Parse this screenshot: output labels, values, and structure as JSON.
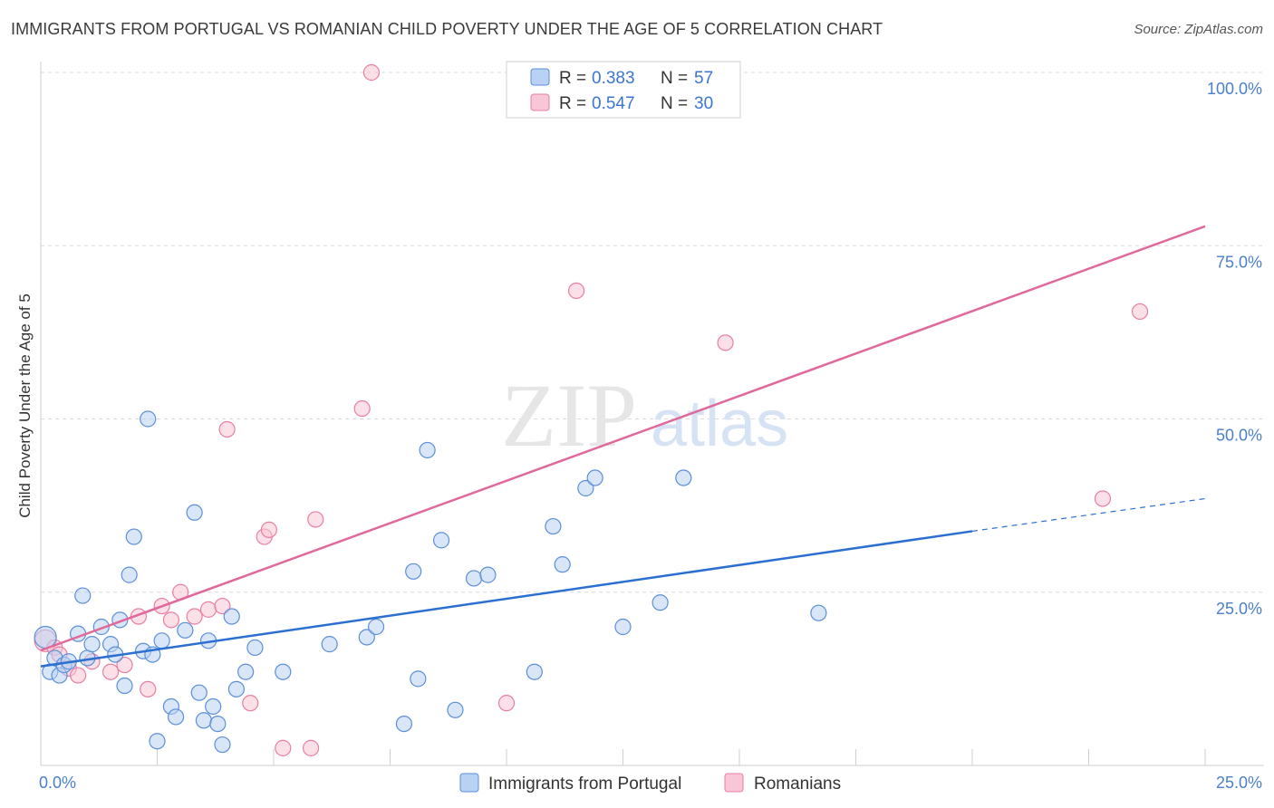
{
  "title": "IMMIGRANTS FROM PORTUGAL VS ROMANIAN CHILD POVERTY UNDER THE AGE OF 5 CORRELATION CHART",
  "source": "Source: ZipAtlas.com",
  "watermark": {
    "zip": "ZIP",
    "atlas": "atlas"
  },
  "colors": {
    "blue": "#5b8fd9",
    "blue_fill": "#b9d1f3",
    "blue_line": "#2b6fd0",
    "pink": "#e87fa3",
    "pink_fill": "#f8c6d6",
    "pink_line": "#e0689a",
    "axis_text": "#4a7fcc",
    "grid": "#d8d8d8"
  },
  "legend": {
    "rows": [
      {
        "r_label": "R =",
        "r_value": "0.383",
        "n_label": "N =",
        "n_value": "57",
        "series": "blue"
      },
      {
        "r_label": "R =",
        "r_value": "0.547",
        "n_label": "N =",
        "n_value": "30",
        "series": "pink"
      }
    ]
  },
  "chart_data": {
    "type": "scatter",
    "title": "IMMIGRANTS FROM PORTUGAL VS ROMANIAN CHILD POVERTY UNDER THE AGE OF 5 CORRELATION CHART",
    "xlabel": "",
    "ylabel": "Child Poverty Under the Age of 5",
    "xlim": [
      0,
      25
    ],
    "ylim": [
      0,
      100
    ],
    "x_tick_labels": [
      "0.0%",
      "25.0%"
    ],
    "y_tick_labels": [
      "25.0%",
      "50.0%",
      "75.0%",
      "100.0%"
    ],
    "y_ticks": [
      25,
      50,
      75,
      100
    ],
    "grid": true,
    "legend_position": "bottom",
    "series": [
      {
        "name": "Immigrants from Portugal",
        "color": "#5b8fd9",
        "points": [
          [
            0.1,
            18.5
          ],
          [
            0.2,
            13.5
          ],
          [
            0.3,
            15.5
          ],
          [
            0.4,
            13
          ],
          [
            0.5,
            14.5
          ],
          [
            0.6,
            15
          ],
          [
            0.8,
            19
          ],
          [
            0.9,
            24.5
          ],
          [
            1.0,
            15.5
          ],
          [
            1.1,
            17.5
          ],
          [
            1.3,
            20
          ],
          [
            1.5,
            17.5
          ],
          [
            1.6,
            16
          ],
          [
            1.7,
            21
          ],
          [
            1.8,
            11.5
          ],
          [
            1.9,
            27.5
          ],
          [
            2.0,
            33
          ],
          [
            2.2,
            16.5
          ],
          [
            2.3,
            50
          ],
          [
            2.4,
            16
          ],
          [
            2.5,
            3.5
          ],
          [
            2.6,
            18
          ],
          [
            2.8,
            8.5
          ],
          [
            2.9,
            7
          ],
          [
            3.1,
            19.5
          ],
          [
            3.3,
            36.5
          ],
          [
            3.4,
            10.5
          ],
          [
            3.5,
            6.5
          ],
          [
            3.6,
            18
          ],
          [
            3.7,
            8.5
          ],
          [
            3.8,
            6
          ],
          [
            3.9,
            3
          ],
          [
            4.1,
            21.5
          ],
          [
            4.2,
            11
          ],
          [
            4.4,
            13.5
          ],
          [
            4.6,
            17
          ],
          [
            5.2,
            13.5
          ],
          [
            6.2,
            17.5
          ],
          [
            7.0,
            18.5
          ],
          [
            7.2,
            20
          ],
          [
            7.8,
            6
          ],
          [
            8.0,
            28
          ],
          [
            8.1,
            12.5
          ],
          [
            8.3,
            45.5
          ],
          [
            8.6,
            32.5
          ],
          [
            8.9,
            8
          ],
          [
            9.3,
            27
          ],
          [
            9.6,
            27.5
          ],
          [
            10.6,
            13.5
          ],
          [
            11.0,
            34.5
          ],
          [
            11.2,
            29
          ],
          [
            11.7,
            40
          ],
          [
            11.9,
            41.5
          ],
          [
            12.5,
            20
          ],
          [
            13.3,
            23.5
          ],
          [
            13.8,
            41.5
          ],
          [
            16.7,
            22
          ]
        ]
      },
      {
        "name": "Romanians",
        "color": "#e87fa3",
        "points": [
          [
            0.1,
            18
          ],
          [
            0.3,
            17
          ],
          [
            0.4,
            16
          ],
          [
            0.6,
            14
          ],
          [
            0.8,
            13
          ],
          [
            1.1,
            15
          ],
          [
            1.5,
            13.5
          ],
          [
            1.8,
            14.5
          ],
          [
            2.1,
            21.5
          ],
          [
            2.3,
            11
          ],
          [
            2.6,
            23
          ],
          [
            2.8,
            21
          ],
          [
            3.0,
            25
          ],
          [
            3.3,
            21.5
          ],
          [
            3.6,
            22.5
          ],
          [
            3.9,
            23
          ],
          [
            4.0,
            48.5
          ],
          [
            4.5,
            9
          ],
          [
            4.8,
            33
          ],
          [
            4.9,
            34
          ],
          [
            5.2,
            2.5
          ],
          [
            5.8,
            2.5
          ],
          [
            5.9,
            35.5
          ],
          [
            6.9,
            51.5
          ],
          [
            7.1,
            100
          ],
          [
            10.0,
            9
          ],
          [
            11.5,
            68.5
          ],
          [
            14.7,
            61
          ],
          [
            22.8,
            38.5
          ],
          [
            23.6,
            65.5
          ]
        ]
      }
    ],
    "trend_lines": [
      {
        "series": "Immigrants from Portugal",
        "x": [
          0,
          20
        ],
        "y": [
          14.3,
          33.8
        ],
        "dashed_extension_to_x": 25,
        "dashed_end_y": 38.5
      },
      {
        "series": "Romanians",
        "x": [
          0,
          25
        ],
        "y": [
          16.6,
          77.8
        ]
      }
    ]
  },
  "legend_bottom": [
    {
      "label": "Immigrants from Portugal",
      "series": "blue"
    },
    {
      "label": "Romanians",
      "series": "pink"
    }
  ]
}
